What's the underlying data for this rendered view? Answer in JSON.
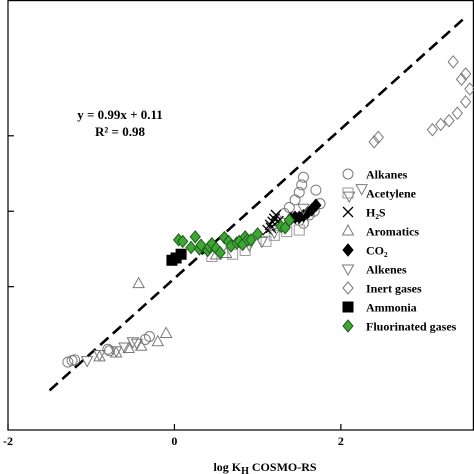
{
  "chart_data": {
    "type": "scatter",
    "title": "",
    "xlabel": {
      "prefix": "log K",
      "sub": "H",
      "suffix": " COSMO-RS"
    },
    "ylabel": "",
    "xlim": [
      -2,
      3.6
    ],
    "ylim": [
      -1.9,
      3.8
    ],
    "x_ticks": [
      -2,
      0,
      2
    ],
    "y_ticks": [
      0,
      1,
      2
    ],
    "x_tick_labels": [
      "-2",
      "0",
      "2"
    ],
    "grid": false,
    "legend_position": "right",
    "equation": "y = 0.99x + 0.11",
    "r_squared": "R² = 0.98",
    "fit_line": {
      "slope": 0.99,
      "intercept": 0.11,
      "x_range": [
        -1.5,
        3.5
      ],
      "style": "dashed"
    },
    "series": [
      {
        "name": "Alkanes",
        "marker": "circle",
        "fill": "none",
        "color": "#7a7a7a",
        "points": [
          [
            -1.28,
            -1.0
          ],
          [
            -1.23,
            -0.98
          ],
          [
            -1.2,
            -0.97
          ],
          [
            -0.8,
            -0.83
          ],
          [
            -0.78,
            -0.85
          ],
          [
            -0.35,
            -0.7
          ],
          [
            -0.3,
            -0.66
          ],
          [
            1.32,
            0.97
          ],
          [
            1.38,
            1.05
          ],
          [
            1.45,
            1.15
          ],
          [
            1.5,
            1.25
          ],
          [
            1.53,
            1.35
          ],
          [
            1.55,
            1.45
          ],
          [
            1.42,
            0.92
          ],
          [
            1.5,
            0.88
          ],
          [
            1.55,
            0.84
          ],
          [
            1.62,
            0.95
          ],
          [
            1.68,
            1.0
          ],
          [
            1.7,
            1.28
          ],
          [
            1.75,
            1.1
          ]
        ]
      },
      {
        "name": "Acetylene",
        "marker": "square",
        "fill": "none",
        "color": "#9a9a9a",
        "points": [
          [
            0.45,
            0.4
          ],
          [
            0.7,
            0.43
          ],
          [
            0.85,
            0.48
          ],
          [
            1.1,
            0.6
          ],
          [
            1.2,
            0.68
          ],
          [
            1.35,
            0.73
          ],
          [
            1.5,
            0.75
          ]
        ]
      },
      {
        "name": "H₂S",
        "marker": "x",
        "fill": "none",
        "color": "#000000",
        "points": [
          [
            1.12,
            0.75
          ],
          [
            1.15,
            0.82
          ],
          [
            1.18,
            0.86
          ],
          [
            1.2,
            0.9
          ],
          [
            1.22,
            0.95
          ],
          [
            1.16,
            0.78
          ],
          [
            1.25,
            0.87
          ]
        ]
      },
      {
        "name": "Aromatics",
        "marker": "triangle",
        "fill": "none",
        "color": "#7a7a7a",
        "points": [
          [
            -0.9,
            -0.93
          ],
          [
            -0.7,
            -0.88
          ],
          [
            -0.55,
            -0.82
          ],
          [
            -0.4,
            -0.79
          ],
          [
            -0.2,
            -0.73
          ],
          [
            -0.1,
            -0.62
          ],
          [
            -0.43,
            0.04
          ],
          [
            0.5,
            0.42
          ],
          [
            0.62,
            0.44
          ]
        ]
      },
      {
        "name": "CO₂",
        "marker": "diamond",
        "fill": "#000000",
        "color": "#000000",
        "points": [
          [
            1.4,
            0.9
          ],
          [
            1.45,
            0.92
          ],
          [
            1.5,
            0.92
          ],
          [
            1.55,
            0.94
          ],
          [
            1.6,
            0.98
          ],
          [
            1.65,
            1.02
          ],
          [
            1.7,
            1.08
          ]
        ]
      },
      {
        "name": "Alkenes",
        "marker": "triangle-down",
        "fill": "none",
        "color": "#7a7a7a",
        "points": [
          [
            -1.05,
            -0.98
          ],
          [
            -0.9,
            -0.9
          ],
          [
            -0.7,
            -0.85
          ],
          [
            -0.6,
            -0.8
          ],
          [
            -0.5,
            -0.73
          ],
          [
            -0.45,
            -0.75
          ],
          [
            0.9,
            0.55
          ],
          [
            1.05,
            0.6
          ],
          [
            1.2,
            0.72
          ],
          [
            1.55,
            1.04
          ],
          [
            2.1,
            1.2
          ],
          [
            2.25,
            1.3
          ]
        ]
      },
      {
        "name": "Inert gases",
        "marker": "diamond",
        "fill": "none",
        "color": "#7a7a7a",
        "points": [
          [
            2.4,
            1.92
          ],
          [
            2.45,
            1.98
          ],
          [
            3.1,
            2.08
          ],
          [
            3.2,
            2.15
          ],
          [
            3.3,
            2.2
          ],
          [
            3.4,
            2.3
          ],
          [
            3.5,
            2.45
          ],
          [
            3.55,
            2.62
          ],
          [
            3.45,
            2.75
          ],
          [
            3.5,
            2.82
          ],
          [
            3.35,
            2.98
          ]
        ]
      },
      {
        "name": "Ammonia",
        "marker": "square",
        "fill": "#000000",
        "color": "#000000",
        "points": [
          [
            -0.03,
            0.35
          ],
          [
            0.02,
            0.38
          ],
          [
            0.08,
            0.43
          ]
        ]
      },
      {
        "name": "Fluorinated gases",
        "marker": "diamond",
        "fill": "#3fa535",
        "color": "#1e5e1a",
        "points": [
          [
            0.05,
            0.62
          ],
          [
            0.1,
            0.6
          ],
          [
            0.2,
            0.52
          ],
          [
            0.25,
            0.66
          ],
          [
            0.3,
            0.5
          ],
          [
            0.32,
            0.55
          ],
          [
            0.4,
            0.48
          ],
          [
            0.42,
            0.53
          ],
          [
            0.45,
            0.57
          ],
          [
            0.5,
            0.51
          ],
          [
            0.55,
            0.45
          ],
          [
            0.6,
            0.65
          ],
          [
            0.65,
            0.6
          ],
          [
            0.68,
            0.54
          ],
          [
            0.75,
            0.58
          ],
          [
            0.78,
            0.6
          ],
          [
            0.82,
            0.56
          ],
          [
            0.85,
            0.66
          ],
          [
            0.88,
            0.62
          ],
          [
            0.92,
            0.62
          ],
          [
            1.0,
            0.7
          ],
          [
            1.28,
            0.8
          ],
          [
            1.33,
            0.78
          ],
          [
            1.38,
            0.88
          ]
        ]
      }
    ]
  }
}
